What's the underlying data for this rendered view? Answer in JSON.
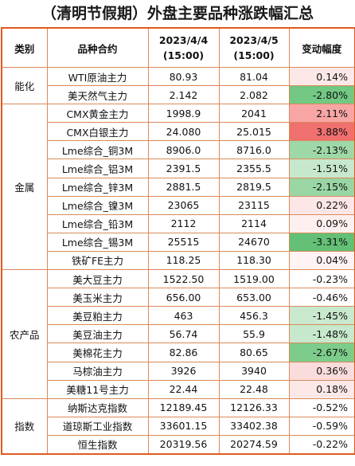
{
  "title": "（清明节假期）外盘主要品种涨跌幅汇总",
  "headers": {
    "category": "类别",
    "contract": "品种合约",
    "date1": "2023/4/4",
    "date1_time": "(15:00)",
    "date2": "2023/4/5",
    "date2_time": "(15:00)",
    "change": "变动幅度"
  },
  "groups": [
    {
      "name": "能化",
      "rows": [
        {
          "contract": "WTI原油主力",
          "v1": "80.93",
          "v2": "81.04",
          "chg": "0.14%",
          "color": "#fde8e8"
        },
        {
          "contract": "美天然气主力",
          "v1": "2.142",
          "v2": "2.082",
          "chg": "-2.80%",
          "color": "#73c883"
        }
      ]
    },
    {
      "name": "金属",
      "rows": [
        {
          "contract": "CMX黄金主力",
          "v1": "1998.9",
          "v2": "2041",
          "chg": "2.11%",
          "color": "#f8a5a5"
        },
        {
          "contract": "CMX白银主力",
          "v1": "24.080",
          "v2": "25.015",
          "chg": "3.88%",
          "color": "#f06f6f"
        },
        {
          "contract": "Lme综合_铜3M",
          "v1": "8906.0",
          "v2": "8716.0",
          "chg": "-2.13%",
          "color": "#9fd8a7"
        },
        {
          "contract": "Lme综合_铝3M",
          "v1": "2391.5",
          "v2": "2355.5",
          "chg": "-1.51%",
          "color": "#c7e8cc"
        },
        {
          "contract": "Lme综合_锌3M",
          "v1": "2881.5",
          "v2": "2819.5",
          "chg": "-2.15%",
          "color": "#9ad6a3"
        },
        {
          "contract": "Lme综合_镍3M",
          "v1": "23065",
          "v2": "23115",
          "chg": "0.22%",
          "color": "#fde6e6"
        },
        {
          "contract": "Lme综合_铅3M",
          "v1": "2112",
          "v2": "2114",
          "chg": "0.09%",
          "color": "#fff0f0"
        },
        {
          "contract": "Lme综合_锡3M",
          "v1": "25515",
          "v2": "24670",
          "chg": "-3.31%",
          "color": "#63c076"
        },
        {
          "contract": "铁矿FE主力",
          "v1": "118.25",
          "v2": "118.30",
          "chg": "0.04%",
          "color": "#fff3f3"
        }
      ]
    },
    {
      "name": "农产品",
      "rows": [
        {
          "contract": "美大豆主力",
          "v1": "1522.50",
          "v2": "1519.00",
          "chg": "-0.23%",
          "color": "#ffffff"
        },
        {
          "contract": "美玉米主力",
          "v1": "656.00",
          "v2": "653.00",
          "chg": "-0.46%",
          "color": "#ffffff"
        },
        {
          "contract": "美豆粕主力",
          "v1": "463",
          "v2": "456.3",
          "chg": "-1.45%",
          "color": "#c9e9ce"
        },
        {
          "contract": "美豆油主力",
          "v1": "56.74",
          "v2": "55.9",
          "chg": "-1.48%",
          "color": "#c7e8cc"
        },
        {
          "contract": "美棉花主力",
          "v1": "82.86",
          "v2": "80.65",
          "chg": "-2.67%",
          "color": "#7dcc8b"
        },
        {
          "contract": "马棕油主力",
          "v1": "3926",
          "v2": "3940",
          "chg": "0.36%",
          "color": "#fbdcdc"
        },
        {
          "contract": "美糖11号主力",
          "v1": "22.44",
          "v2": "22.48",
          "chg": "0.18%",
          "color": "#fde8e8"
        }
      ]
    },
    {
      "name": "指数",
      "rows": [
        {
          "contract": "纳斯达克指数",
          "v1": "12189.45",
          "v2": "12126.33",
          "chg": "-0.52%",
          "color": "#ffffff"
        },
        {
          "contract": "道琼斯工业指数",
          "v1": "33601.15",
          "v2": "33402.38",
          "chg": "-0.59%",
          "color": "#ffffff"
        },
        {
          "contract": "恒生指数",
          "v1": "20319.56",
          "v2": "20274.59",
          "chg": "-0.22%",
          "color": "#ffffff"
        }
      ]
    }
  ]
}
